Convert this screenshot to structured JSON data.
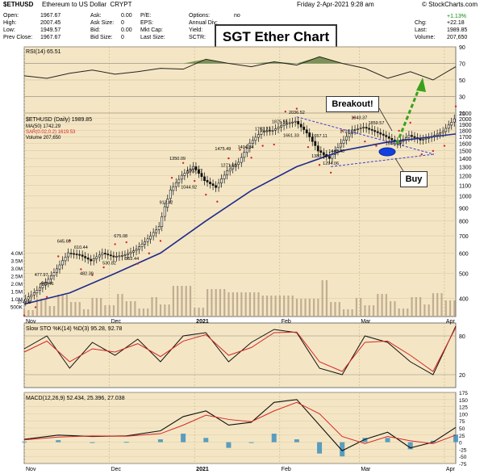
{
  "header": {
    "symbol": "$ETHUSD",
    "name": "Ethereum to US Dollar",
    "exchange": "CRYPT",
    "credit": "© StockCharts.com",
    "datetime": "Friday  2-Apr-2021  9:28 am"
  },
  "stats": {
    "open_label": "Open:",
    "open": "1967.67",
    "high_label": "High:",
    "high": "2007.45",
    "low_label": "Low:",
    "low": "1949.57",
    "prev_label": "Prev Close:",
    "prev": "1967.67",
    "ask_label": "Ask:",
    "ask": "0.00",
    "asksize_label": "Ask Size:",
    "asksize": "0",
    "bid_label": "Bid:",
    "bid": "0.00",
    "bidsize_label": "Bid Size:",
    "bidsize": "0",
    "pe_label": "P/E:",
    "eps_label": "EPS:",
    "mktcap_label": "Mkt Cap:",
    "lastsize_label": "Last Size:",
    "options_label": "Options:",
    "options": "no",
    "annualdiv_label": "Annual Div:",
    "yield_label": "Yield:",
    "sctr_label": "SCTR:",
    "chg_label": "Chg:",
    "chg": "+22.18",
    "chgpct": "+1.13%",
    "last_label": "Last:",
    "last": "1989.85",
    "volume_label": "Volume:",
    "volume": "207,650"
  },
  "annotations": {
    "title": "SGT Ether Chart",
    "breakout": "Breakout!",
    "buy": "Buy"
  },
  "colors": {
    "panel_bg": "#f4e6c4",
    "candle": "#111111",
    "ma": "#1f2a8c",
    "sar": "#d62728",
    "volume": "#b9a28a",
    "triangle": "#3b3bd6",
    "arrow": "#3aa01c",
    "rsi_fill": "#5c7d3a",
    "macd_hist": "#3d8fbf"
  },
  "chart_data": [
    {
      "type": "line",
      "panel": "RSI",
      "label": "RSI(14) 65.51",
      "ylim": [
        10,
        90
      ],
      "yticks": [
        10,
        30,
        50,
        70,
        90
      ],
      "reference_lines": [
        30,
        70
      ],
      "t": [
        0,
        8,
        16,
        24,
        32,
        40,
        48,
        56,
        64,
        72,
        80,
        88,
        96,
        104,
        112,
        120,
        128,
        136,
        144,
        152
      ],
      "values": [
        55,
        52,
        58,
        62,
        57,
        60,
        64,
        63,
        75,
        70,
        66,
        72,
        68,
        78,
        70,
        64,
        52,
        60,
        50,
        66
      ]
    },
    {
      "type": "candlestick",
      "panel": "Price",
      "label": "$ETHUSD (Daily) 1989.85",
      "series_labels": [
        "MA(50) 1742.29",
        "SAR(0.02,0.2) 1619.53",
        "Volume 207,650"
      ],
      "yscale": "log",
      "ylim": [
        340,
        2100
      ],
      "yticks": [
        400,
        500,
        600,
        700,
        800,
        900,
        1000,
        1100,
        1200,
        1300,
        1400,
        1500,
        1600,
        1700,
        1800,
        1900,
        2000,
        2100
      ],
      "volume_ticks": [
        "4.0M",
        "3.5M",
        "3.0M",
        "2.5M",
        "2.0M",
        "1.5M",
        "1.0M",
        "500K"
      ],
      "xlabels": [
        "Nov",
        "Dec",
        "2021",
        "Feb",
        "Mar",
        "Apr"
      ],
      "price_path": {
        "t": [
          0,
          4,
          8,
          12,
          16,
          20,
          24,
          28,
          32,
          36,
          40,
          44,
          48,
          52,
          56,
          60,
          64,
          68,
          72,
          76,
          80,
          84,
          88,
          92,
          96,
          100,
          104,
          108,
          112,
          116,
          120,
          124,
          128,
          132,
          136,
          140,
          144,
          148,
          152
        ],
        "close": [
          390,
          420,
          460,
          520,
          600,
          590,
          560,
          600,
          580,
          590,
          620,
          680,
          760,
          1050,
          1200,
          1300,
          1150,
          1080,
          1250,
          1350,
          1600,
          1780,
          1800,
          1900,
          1950,
          1760,
          1500,
          1400,
          1600,
          1800,
          1850,
          1780,
          1700,
          1600,
          1720,
          1650,
          1700,
          1780,
          1990
        ]
      },
      "ma50": {
        "t": [
          0,
          16,
          32,
          48,
          64,
          80,
          96,
          112,
          128,
          144,
          152
        ],
        "values": [
          380,
          420,
          500,
          600,
          800,
          1050,
          1300,
          1500,
          1620,
          1700,
          1742
        ]
      },
      "price_labels": [
        {
          "t": 6,
          "value": "477.97"
        },
        {
          "t": 14,
          "value": "645.60"
        },
        {
          "t": 8,
          "value": "440.46"
        },
        {
          "t": 20,
          "value": "610.44"
        },
        {
          "t": 22,
          "value": "482.39"
        },
        {
          "t": 30,
          "value": "530.82"
        },
        {
          "t": 34,
          "value": "675.08"
        },
        {
          "t": 38,
          "value": "552.44"
        },
        {
          "t": 54,
          "value": "1350.09"
        },
        {
          "t": 60,
          "value": "1207.77"
        },
        {
          "t": 58,
          "value": "1044.92"
        },
        {
          "t": 50,
          "value": "912.42"
        },
        {
          "t": 70,
          "value": "1475.49"
        },
        {
          "t": 72,
          "value": "1271.68"
        },
        {
          "t": 78,
          "value": "1494.84"
        },
        {
          "t": 84,
          "value": "1762.23"
        },
        {
          "t": 90,
          "value": "1875.55"
        },
        {
          "t": 96,
          "value": "2036.52"
        },
        {
          "t": 94,
          "value": "1661.33"
        },
        {
          "t": 104,
          "value": "1657.11"
        },
        {
          "t": 104,
          "value": "1380.96"
        },
        {
          "t": 108,
          "value": "1294.06"
        },
        {
          "t": 110,
          "value": "1440.40"
        },
        {
          "t": 114,
          "value": "1722.01"
        },
        {
          "t": 118,
          "value": "1943.37"
        },
        {
          "t": 124,
          "value": "1859.57"
        },
        {
          "t": 130,
          "value": "1546.93"
        },
        {
          "t": 0,
          "value": "374.08"
        }
      ]
    },
    {
      "type": "line",
      "panel": "Slow STO",
      "label": "Slow STO %K(14) %D(3) 95.28, 92.78",
      "ylim": [
        0,
        100
      ],
      "yticks": [
        20,
        80
      ],
      "series": [
        {
          "name": "%K",
          "t": [
            0,
            8,
            16,
            24,
            32,
            40,
            48,
            56,
            64,
            72,
            80,
            88,
            96,
            104,
            112,
            120,
            128,
            136,
            144,
            152
          ],
          "values": [
            60,
            80,
            30,
            70,
            50,
            75,
            40,
            80,
            85,
            40,
            70,
            90,
            85,
            30,
            20,
            80,
            70,
            40,
            20,
            95
          ]
        },
        {
          "name": "%D",
          "t": [
            0,
            8,
            16,
            24,
            32,
            40,
            48,
            56,
            64,
            72,
            80,
            88,
            96,
            104,
            112,
            120,
            128,
            136,
            144,
            152
          ],
          "values": [
            55,
            72,
            40,
            60,
            55,
            68,
            48,
            72,
            82,
            50,
            62,
            85,
            86,
            40,
            25,
            70,
            72,
            50,
            25,
            93
          ]
        }
      ]
    },
    {
      "type": "line",
      "panel": "MACD",
      "label": "MACD(12,26,9) 52.434, 25.396, 27.038",
      "ylim": [
        -75,
        175
      ],
      "yticks": [
        -75,
        -50,
        -25,
        0,
        25,
        50,
        75,
        100,
        125,
        150,
        175
      ],
      "xlabels": [
        "Nov",
        "Dec",
        "2021",
        "Feb",
        "Mar",
        "Apr"
      ],
      "series": [
        {
          "name": "MACD",
          "t": [
            0,
            12,
            24,
            36,
            48,
            56,
            64,
            72,
            80,
            88,
            96,
            104,
            112,
            120,
            128,
            136,
            144,
            152
          ],
          "values": [
            10,
            25,
            20,
            22,
            40,
            90,
            110,
            60,
            70,
            140,
            150,
            60,
            -30,
            10,
            35,
            -20,
            0,
            52
          ]
        },
        {
          "name": "Signal",
          "t": [
            0,
            12,
            24,
            36,
            48,
            56,
            64,
            72,
            80,
            88,
            96,
            104,
            112,
            120,
            128,
            136,
            144,
            152
          ],
          "values": [
            8,
            18,
            22,
            21,
            30,
            60,
            95,
            80,
            72,
            110,
            140,
            100,
            20,
            -5,
            20,
            5,
            -5,
            25
          ]
        }
      ]
    }
  ]
}
